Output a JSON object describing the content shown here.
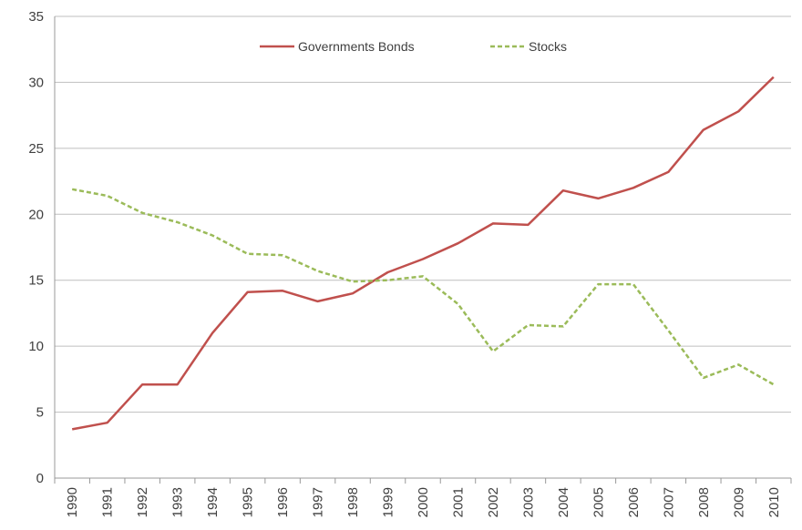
{
  "chart_data": {
    "type": "line",
    "title": "",
    "xlabel": "",
    "ylabel": "",
    "ylim": [
      0,
      35
    ],
    "y_ticks": [
      "0",
      "5",
      "10",
      "15",
      "20",
      "25",
      "30",
      "35"
    ],
    "categories": [
      "1990",
      "1991",
      "1992",
      "1993",
      "1994",
      "1995",
      "1996",
      "1997",
      "1998",
      "1999",
      "2000",
      "2001",
      "2002",
      "2003",
      "2004",
      "2005",
      "2006",
      "2007",
      "2008",
      "2009",
      "2010"
    ],
    "grid": true,
    "legend_position": "top-center",
    "series": [
      {
        "name": "Governments Bonds",
        "color": "#c0504d",
        "style": "solid",
        "values": [
          3.7,
          4.2,
          7.1,
          7.1,
          11.0,
          14.1,
          14.2,
          13.4,
          14.0,
          15.6,
          16.6,
          17.8,
          19.3,
          19.2,
          21.8,
          21.2,
          22.0,
          23.2,
          26.4,
          27.8,
          30.4
        ]
      },
      {
        "name": "Stocks",
        "color": "#9bbb59",
        "style": "dashed",
        "values": [
          21.9,
          21.4,
          20.1,
          19.4,
          18.4,
          17.0,
          16.9,
          15.7,
          14.9,
          15.0,
          15.3,
          13.2,
          9.6,
          11.6,
          11.5,
          14.7,
          14.7,
          11.2,
          7.6,
          8.6,
          7.1
        ]
      }
    ]
  }
}
